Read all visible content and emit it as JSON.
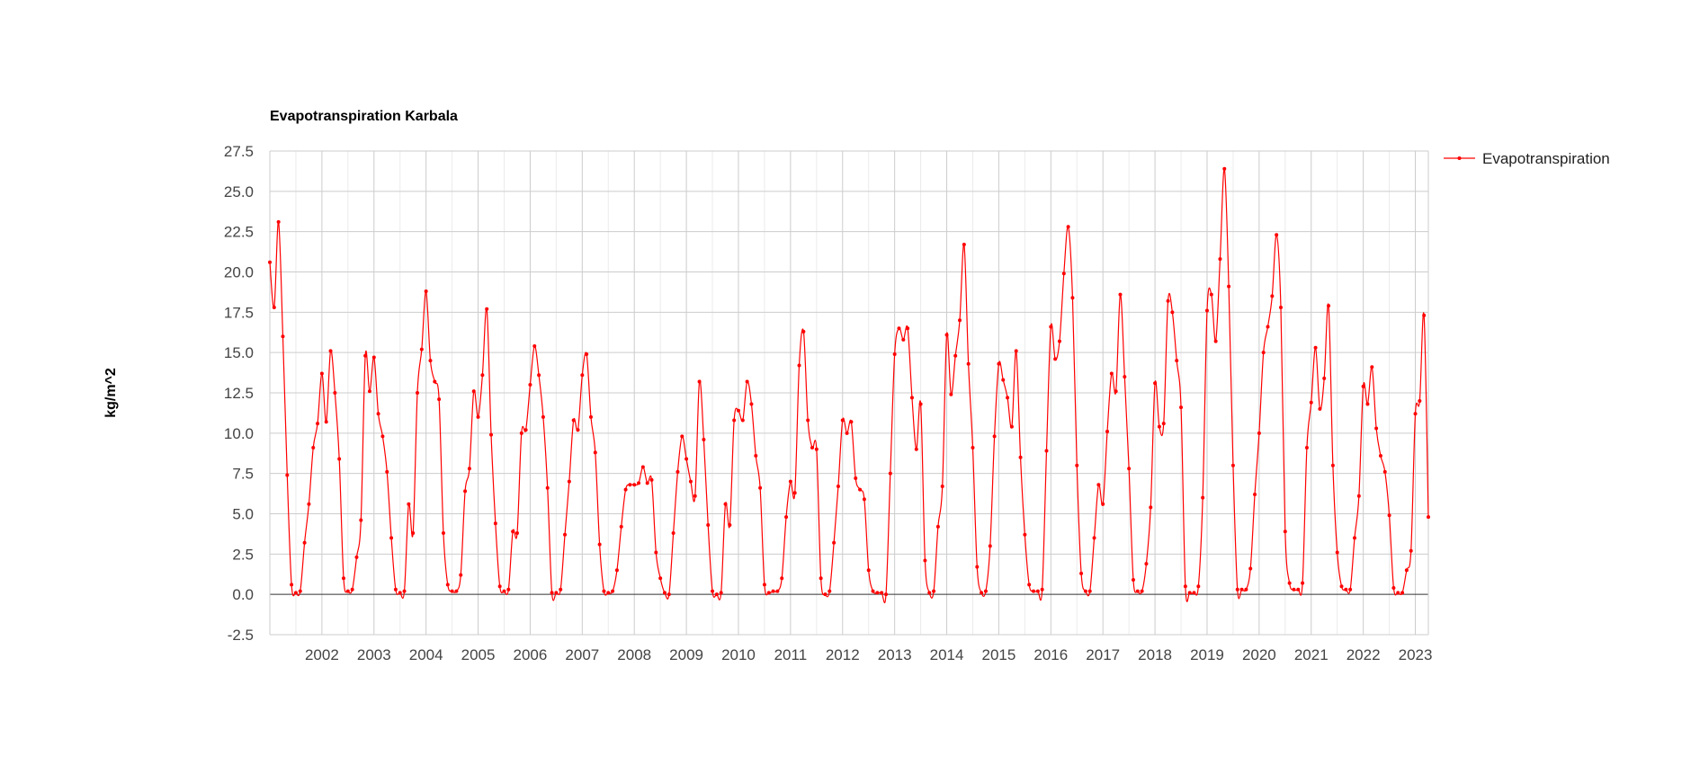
{
  "chart_data": {
    "type": "line",
    "title": "Evapotranspiration Karbala",
    "ylabel": "kg/m^2",
    "xlabel": "",
    "ylim": [
      -2.5,
      27.5
    ],
    "y_ticks": [
      "-2.5",
      "0.0",
      "2.5",
      "5.0",
      "7.5",
      "10.0",
      "12.5",
      "15.0",
      "17.5",
      "20.0",
      "22.5",
      "25.0",
      "27.5"
    ],
    "x_tick_labels": [
      "2002",
      "2003",
      "2004",
      "2005",
      "2006",
      "2007",
      "2008",
      "2009",
      "2010",
      "2011",
      "2012",
      "2013",
      "2014",
      "2015",
      "2016",
      "2017",
      "2018",
      "2019",
      "2020",
      "2021",
      "2022",
      "2023"
    ],
    "x_start": "2001-01",
    "x_step": "1 month",
    "grid": true,
    "legend_position": "right",
    "series_color": "#ff0000",
    "series": [
      {
        "name": "Evapotranspiration",
        "values": [
          20.6,
          17.8,
          23.1,
          16.0,
          7.4,
          0.6,
          0.1,
          0.2,
          3.2,
          5.6,
          9.1,
          10.6,
          13.7,
          10.7,
          15.1,
          12.5,
          8.4,
          1.0,
          0.2,
          0.3,
          2.3,
          4.6,
          14.8,
          12.6,
          14.7,
          11.2,
          9.8,
          7.6,
          3.5,
          0.3,
          0.1,
          0.2,
          5.6,
          3.8,
          12.5,
          15.2,
          18.8,
          14.5,
          13.2,
          12.1,
          3.8,
          0.6,
          0.2,
          0.2,
          1.2,
          6.4,
          7.8,
          12.6,
          11.0,
          13.6,
          17.7,
          9.9,
          4.4,
          0.5,
          0.2,
          0.3,
          3.9,
          3.8,
          10.0,
          10.2,
          13.0,
          15.4,
          13.6,
          11.0,
          6.6,
          0.1,
          0.1,
          0.3,
          3.7,
          7.0,
          10.8,
          10.2,
          13.6,
          14.9,
          11.0,
          8.8,
          3.1,
          0.2,
          0.1,
          0.2,
          1.5,
          4.2,
          6.5,
          6.8,
          6.8,
          6.9,
          7.9,
          6.9,
          7.1,
          2.6,
          1.0,
          0.1,
          0.0,
          3.8,
          7.6,
          9.8,
          8.4,
          7.0,
          6.1,
          13.2,
          9.6,
          4.3,
          0.2,
          0.0,
          0.1,
          5.6,
          4.3,
          10.8,
          11.4,
          10.8,
          13.2,
          11.8,
          8.6,
          6.6,
          0.6,
          0.1,
          0.2,
          0.2,
          1.0,
          4.8,
          7.0,
          6.3,
          14.2,
          16.3,
          10.8,
          9.1,
          9.0,
          1.0,
          0.0,
          0.2,
          3.2,
          6.7,
          10.8,
          10.0,
          10.7,
          7.2,
          6.5,
          5.9,
          1.5,
          0.2,
          0.1,
          0.1,
          0.0,
          7.5,
          14.9,
          16.5,
          15.8,
          16.5,
          12.2,
          9.0,
          11.8,
          2.1,
          0.1,
          0.2,
          4.2,
          6.7,
          16.1,
          12.4,
          14.8,
          17.0,
          21.7,
          14.3,
          9.1,
          1.7,
          0.1,
          0.2,
          3.0,
          9.8,
          14.3,
          13.3,
          12.2,
          10.4,
          15.1,
          8.5,
          3.7,
          0.6,
          0.2,
          0.2,
          0.3,
          8.9,
          16.6,
          14.6,
          15.7,
          19.9,
          22.8,
          18.4,
          8.0,
          1.3,
          0.2,
          0.2,
          3.5,
          6.8,
          5.6,
          10.1,
          13.7,
          12.6,
          18.6,
          13.5,
          7.8,
          0.9,
          0.2,
          0.2,
          1.9,
          5.4,
          13.1,
          10.4,
          10.6,
          18.2,
          17.5,
          14.5,
          11.6,
          0.5,
          0.1,
          0.1,
          0.5,
          6.0,
          17.6,
          18.6,
          15.7,
          20.8,
          26.4,
          19.1,
          8.0,
          0.3,
          0.3,
          0.3,
          1.6,
          6.2,
          10.0,
          15.0,
          16.6,
          18.5,
          22.3,
          17.8,
          3.9,
          0.7,
          0.3,
          0.3,
          0.7,
          9.1,
          11.9,
          15.3,
          11.5,
          13.4,
          17.9,
          8.0,
          2.6,
          0.5,
          0.3,
          0.3,
          3.5,
          6.1,
          12.9,
          11.8,
          14.1,
          10.3,
          8.6,
          7.6,
          4.9,
          0.4,
          0.1,
          0.1,
          1.5,
          2.7,
          11.2,
          12.0,
          17.3,
          4.8
        ]
      }
    ]
  }
}
